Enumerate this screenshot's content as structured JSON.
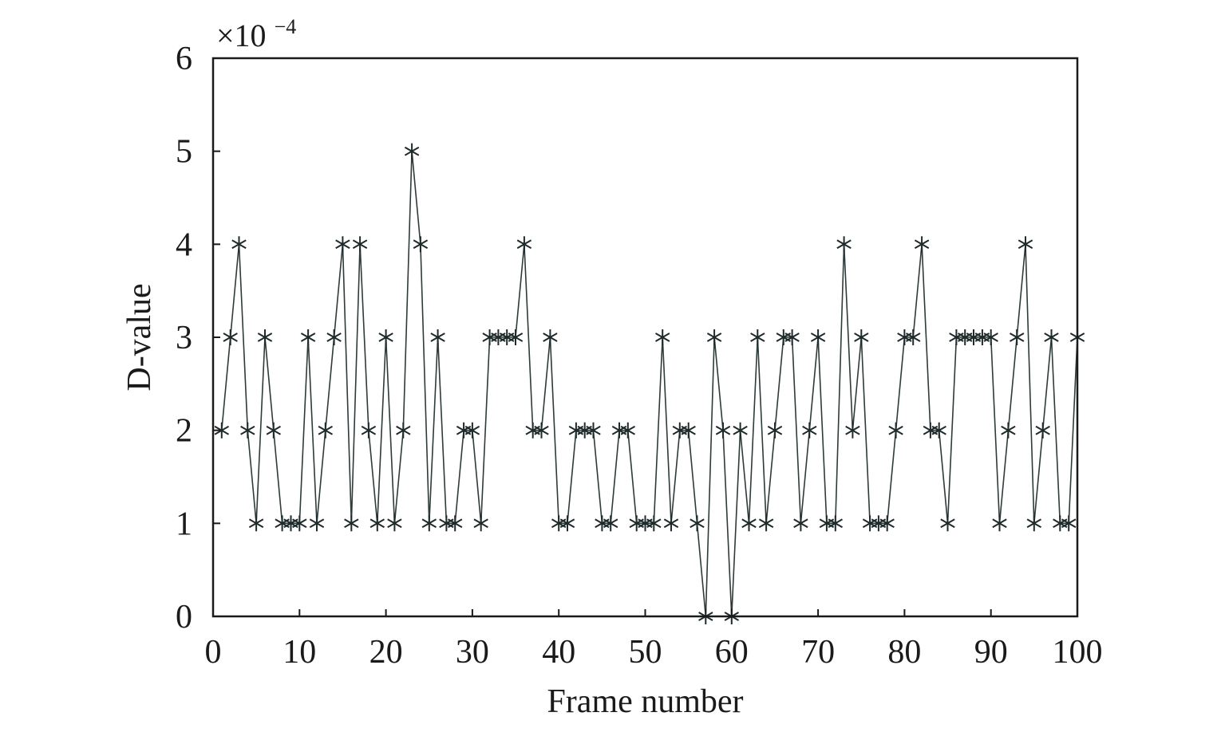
{
  "chart_data": {
    "type": "line",
    "title": "",
    "xlabel": "Frame number",
    "ylabel": "D-value",
    "y_multiplier": "×10",
    "y_multiplier_exponent": "−4",
    "xlim": [
      0,
      100
    ],
    "ylim": [
      0,
      6
    ],
    "x_ticks": [
      0,
      10,
      20,
      30,
      40,
      50,
      60,
      70,
      80,
      90,
      100
    ],
    "y_ticks": [
      0,
      1,
      2,
      3,
      4,
      5,
      6
    ],
    "grid": false,
    "marker": "asterisk",
    "line_color": "#2f3a3a",
    "marker_color": "#1f2a2a",
    "series": [
      {
        "x": [
          1,
          2,
          3,
          4,
          5,
          6,
          7,
          8,
          9,
          10,
          11,
          12,
          13,
          14,
          15,
          16,
          17,
          18,
          19,
          20,
          21,
          22,
          23,
          24,
          25,
          26,
          27,
          28,
          29,
          30,
          31,
          32,
          33,
          34,
          35,
          36,
          37,
          38,
          39,
          40,
          41,
          42,
          43,
          44,
          45,
          46,
          47,
          48,
          49,
          50,
          51,
          52,
          53,
          54,
          55,
          56,
          57,
          58,
          59,
          60,
          61,
          62,
          63,
          64,
          65,
          66,
          67,
          68,
          69,
          70,
          71,
          72,
          73,
          74,
          75,
          76,
          77,
          78,
          79,
          80,
          81,
          82,
          83,
          84,
          85,
          86,
          87,
          88,
          89,
          90,
          91,
          92,
          93,
          94,
          95,
          96,
          97,
          98,
          99,
          100
        ],
        "values": [
          2,
          3,
          4,
          2,
          1,
          3,
          2,
          1,
          1,
          1,
          3,
          1,
          2,
          3,
          4,
          1,
          4,
          2,
          1,
          3,
          1,
          2,
          5,
          4,
          1,
          3,
          1,
          1,
          2,
          2,
          1,
          3,
          3,
          3,
          3,
          4,
          2,
          2,
          3,
          1,
          1,
          2,
          2,
          2,
          1,
          1,
          2,
          2,
          1,
          1,
          1,
          3,
          1,
          2,
          2,
          1,
          0,
          3,
          2,
          0,
          2,
          1,
          3,
          1,
          2,
          3,
          3,
          1,
          2,
          3,
          1,
          1,
          4,
          2,
          3,
          1,
          1,
          1,
          2,
          3,
          3,
          4,
          2,
          2,
          1,
          3,
          3,
          3,
          3,
          3,
          1,
          2,
          3,
          4,
          1,
          2,
          3,
          1,
          1,
          3
        ]
      }
    ]
  }
}
